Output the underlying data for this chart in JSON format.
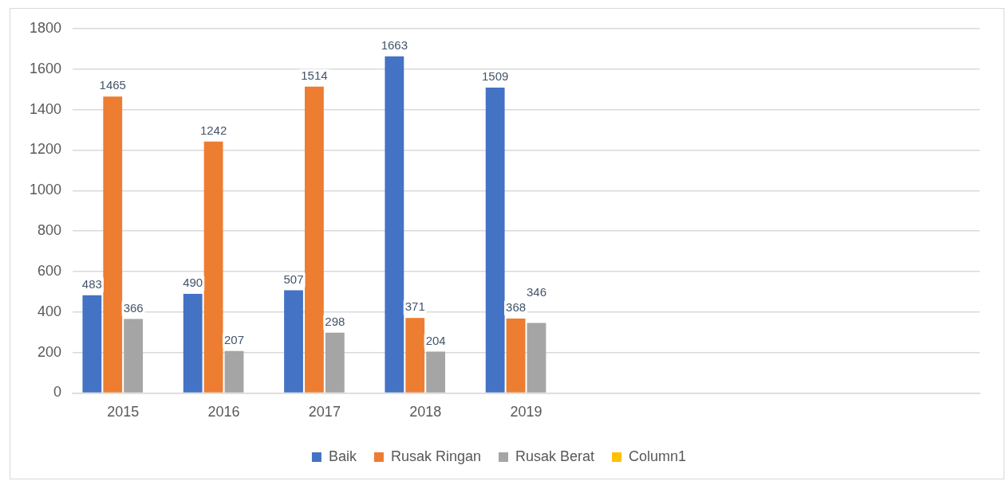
{
  "chart_data": {
    "type": "bar",
    "categories": [
      "2015",
      "2016",
      "2017",
      "2018",
      "2019",
      null,
      null,
      null,
      null
    ],
    "series": [
      {
        "name": "Baik",
        "color": "#4472c4",
        "values": [
          483,
          490,
          507,
          1663,
          1509,
          null,
          null,
          null,
          null
        ]
      },
      {
        "name": "Rusak Ringan",
        "color": "#ed7d31",
        "values": [
          1465,
          1242,
          1514,
          371,
          368,
          null,
          null,
          null,
          null
        ]
      },
      {
        "name": "Rusak Berat",
        "color": "#a5a5a5",
        "values": [
          366,
          207,
          298,
          204,
          346,
          null,
          null,
          null,
          null
        ]
      },
      {
        "name": "Column1",
        "color": "#ffc000",
        "values": [
          null,
          null,
          null,
          null,
          null,
          null,
          null,
          null,
          null
        ]
      }
    ],
    "ylim": [
      0,
      1800
    ],
    "yticks": [
      0,
      200,
      400,
      600,
      800,
      1000,
      1200,
      1400,
      1600,
      1800
    ],
    "grid": "y",
    "legend": "bottom",
    "data_labels": true
  }
}
